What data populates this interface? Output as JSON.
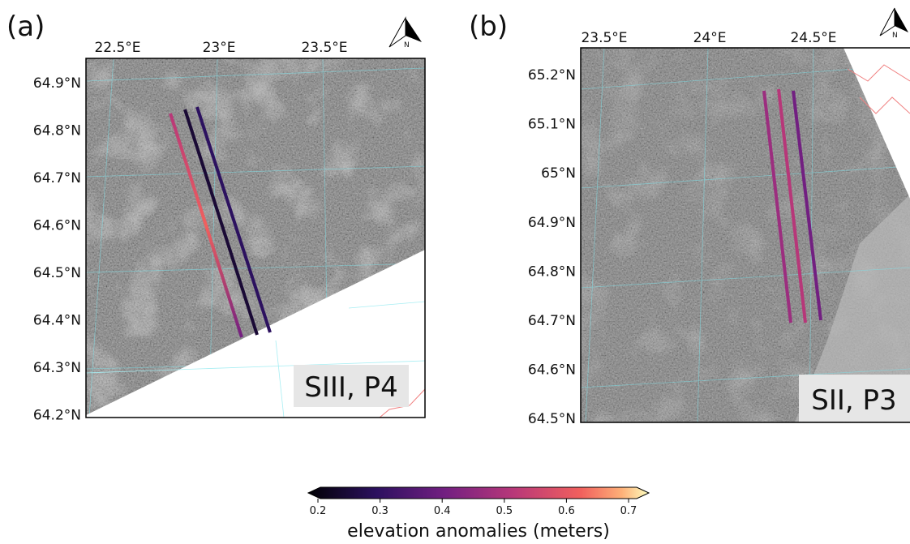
{
  "panels": [
    {
      "label": "(a)",
      "lon_ticks": [
        "22.5°E",
        "23°E",
        "23.5°E"
      ],
      "lat_ticks": [
        "64.9°N",
        "64.8°N",
        "64.7°N",
        "64.6°N",
        "64.5°N",
        "64.4°N",
        "64.3°N",
        "64.2°N"
      ],
      "annotation": "SIII, P4",
      "north": "N"
    },
    {
      "label": "(b)",
      "lon_ticks": [
        "23.5°E",
        "24°E",
        "24.5°E"
      ],
      "lat_ticks": [
        "65.2°N",
        "65.1°N",
        "65°N",
        "64.9°N",
        "64.8°N",
        "64.7°N",
        "64.6°N",
        "64.5°N"
      ],
      "annotation": "SII, P3",
      "north": "N"
    }
  ],
  "colorbar": {
    "range": [
      0.2,
      0.7
    ],
    "ticks": [
      0.2,
      0.3,
      0.4,
      0.5,
      0.6,
      0.7
    ],
    "label": "elevation anomalies (meters)"
  }
}
